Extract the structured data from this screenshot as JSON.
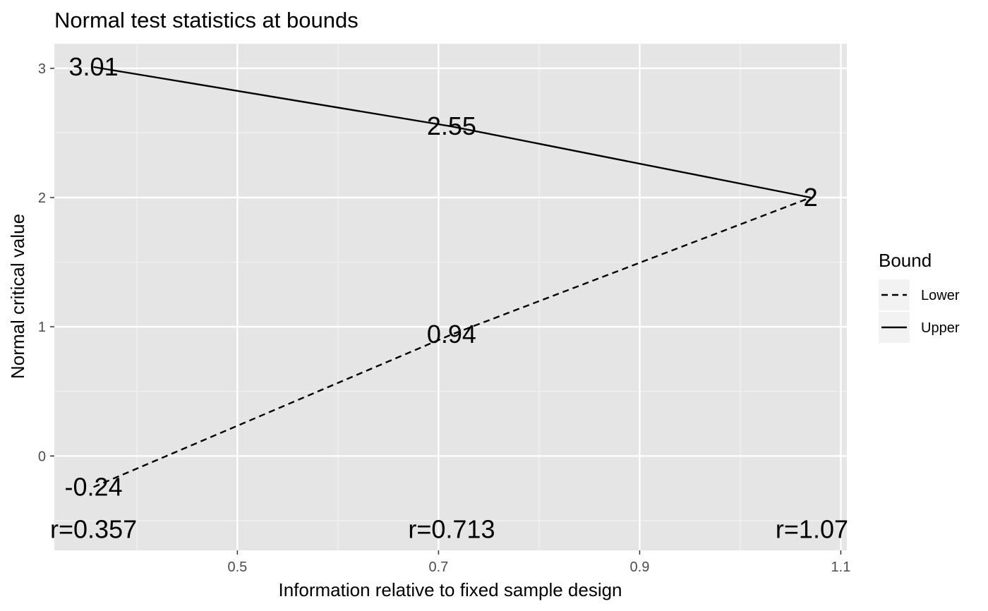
{
  "chart_data": {
    "type": "line",
    "title": "Normal test statistics at bounds",
    "xlabel": "Information relative to fixed sample design",
    "ylabel": "Normal critical value",
    "xlim": [
      0.318,
      1.106
    ],
    "ylim": [
      -0.73,
      3.19
    ],
    "x_ticks": [
      0.5,
      0.7,
      0.9,
      1.1
    ],
    "x_tick_labels": [
      "0.5",
      "0.7",
      "0.9",
      "1.1"
    ],
    "y_ticks": [
      0,
      1,
      2,
      3
    ],
    "y_tick_labels": [
      "0",
      "1",
      "2",
      "3"
    ],
    "grid": true,
    "legend": {
      "title": "Bound",
      "position": "right",
      "entries": [
        {
          "label": "Lower",
          "linetype": "dashed"
        },
        {
          "label": "Upper",
          "linetype": "solid"
        }
      ]
    },
    "series": [
      {
        "name": "Lower",
        "linetype": "dashed",
        "color": "#000000",
        "x": [
          0.357,
          0.713,
          1.07
        ],
        "y": [
          -0.24,
          0.94,
          2.0
        ],
        "labels": [
          "-0.24",
          "0.94",
          "2"
        ]
      },
      {
        "name": "Upper",
        "linetype": "solid",
        "color": "#000000",
        "x": [
          0.357,
          0.713,
          1.07
        ],
        "y": [
          3.01,
          2.55,
          2.0
        ],
        "labels": [
          "3.01",
          "2.55",
          "2"
        ]
      }
    ],
    "annotations": [
      {
        "text": "r=0.357",
        "x": 0.357,
        "y": -0.57
      },
      {
        "text": "r=0.713",
        "x": 0.713,
        "y": -0.57
      },
      {
        "text": "r=1.07",
        "x": 1.07,
        "y": -0.57
      }
    ],
    "colors": {
      "panel_background": "#e5e5e5",
      "grid_major": "#ffffff",
      "grid_minor": "#f2f2f2",
      "tick_text": "#4d4d4d"
    }
  }
}
